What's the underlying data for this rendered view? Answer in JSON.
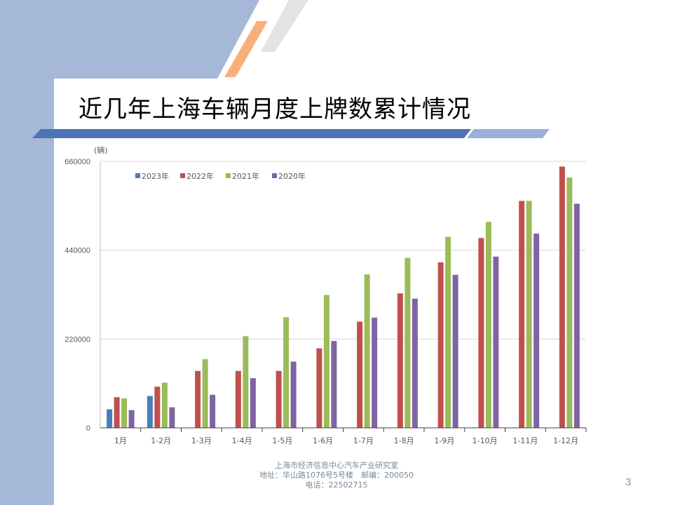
{
  "slide": {
    "title": "近几年上海车辆月度上牌数累计情况",
    "footer_lines": [
      "上海市经济信息中心汽车产业研究室",
      "地址：华山路1076号5号楼　邮编：200050",
      "电话：22502715"
    ],
    "page_number": "3",
    "colors": {
      "sidebar": "#a6b8d8",
      "accent_orange": "#f7b07a",
      "band_dark": "#4f74b6",
      "band_light": "#9bb0d6"
    }
  },
  "chart_data": {
    "type": "bar",
    "unit_label": "(辆)",
    "categories": [
      "1月",
      "1-2月",
      "1-3月",
      "1-4月",
      "1-5月",
      "1-6月",
      "1-7月",
      "1-8月",
      "1-9月",
      "1-10月",
      "1-11月",
      "1-12月"
    ],
    "series": [
      {
        "name": "2023年",
        "color": "#4a7ebb",
        "values": [
          46000,
          79000,
          null,
          null,
          null,
          null,
          null,
          null,
          null,
          null,
          null,
          null
        ]
      },
      {
        "name": "2022年",
        "color": "#c0504d",
        "values": [
          76000,
          102000,
          141000,
          141000,
          141000,
          197000,
          263000,
          333000,
          410000,
          470000,
          562000,
          647000
        ]
      },
      {
        "name": "2021年",
        "color": "#9bbb59",
        "values": [
          73000,
          112000,
          170000,
          227000,
          274000,
          329000,
          380000,
          421000,
          473000,
          510000,
          562000,
          620000
        ]
      },
      {
        "name": "2020年",
        "color": "#8064a2",
        "values": [
          44000,
          51000,
          82000,
          123000,
          164000,
          215000,
          273000,
          320000,
          379000,
          424000,
          481000,
          555000
        ]
      }
    ],
    "yticks": [
      0,
      220000,
      440000,
      660000
    ],
    "ylim": [
      0,
      660000
    ],
    "grid": true,
    "legend_position": "top-left"
  }
}
